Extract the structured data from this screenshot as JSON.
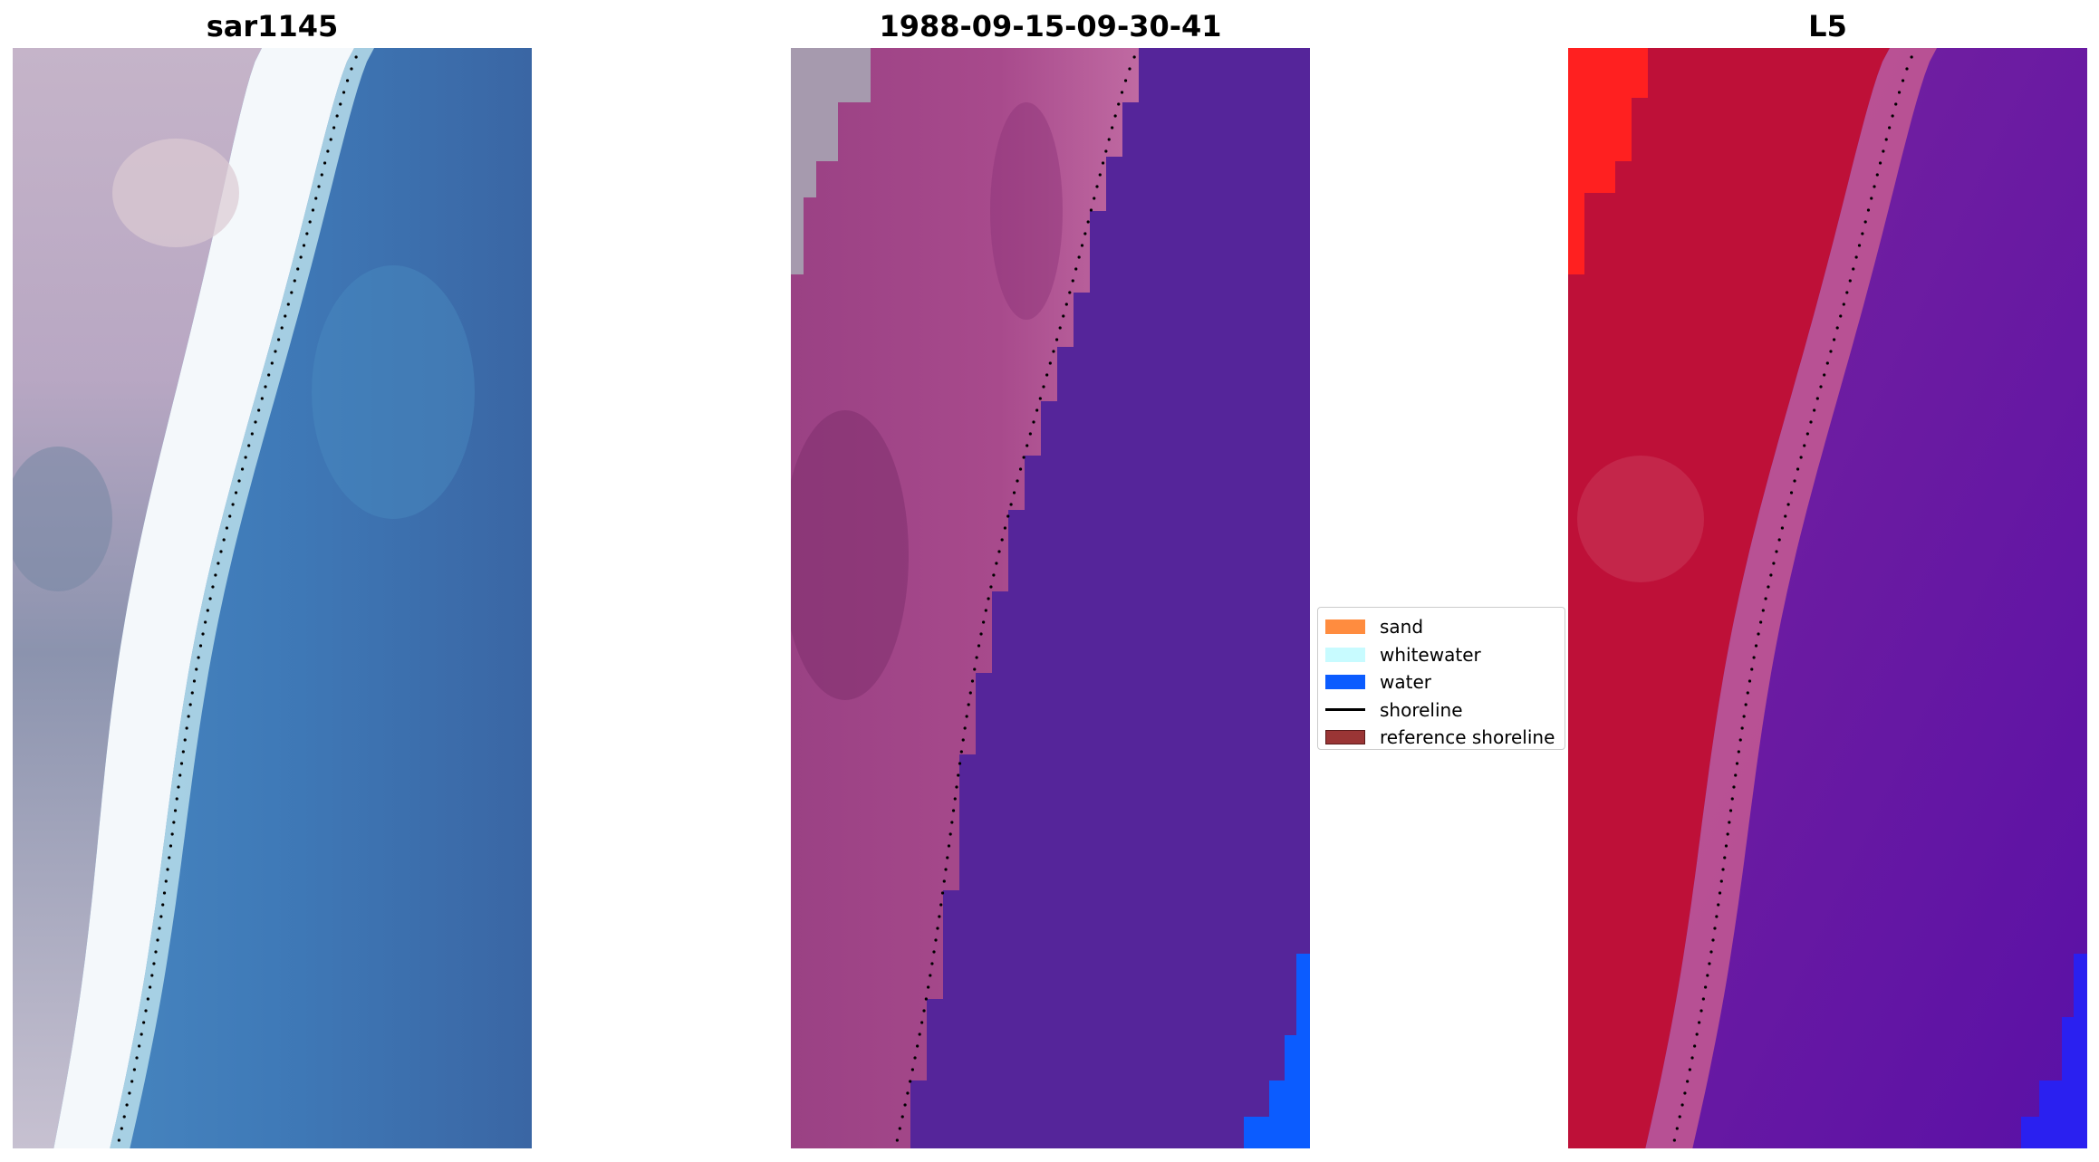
{
  "panels": [
    {
      "title": "sar1145",
      "style": "rgb"
    },
    {
      "title": "1988-09-15-09-30-41",
      "style": "classified"
    },
    {
      "title": "L5",
      "style": "index"
    }
  ],
  "legend": {
    "items": [
      {
        "label": "sand",
        "kind": "patch",
        "color": "#ff8c3f"
      },
      {
        "label": "whitewater",
        "kind": "patch",
        "color": "#c8fbff"
      },
      {
        "label": "water",
        "kind": "patch",
        "color": "#0b5cff"
      },
      {
        "label": "shoreline",
        "kind": "line",
        "color": "#000000"
      },
      {
        "label": "reference shoreline",
        "kind": "patch",
        "color": "#9a3535",
        "edge": "#5a1a1a"
      }
    ]
  },
  "colors": {
    "water_class": "#55259a",
    "water_patch": "#0b5cff",
    "shoreline_points": "#000000",
    "rgb_sea": "#3f73b3",
    "rgb_land": "#b7a8c2",
    "rgb_surf": "#ffffff",
    "index_land": "#c01038",
    "index_sea": "#6a1aa6"
  }
}
